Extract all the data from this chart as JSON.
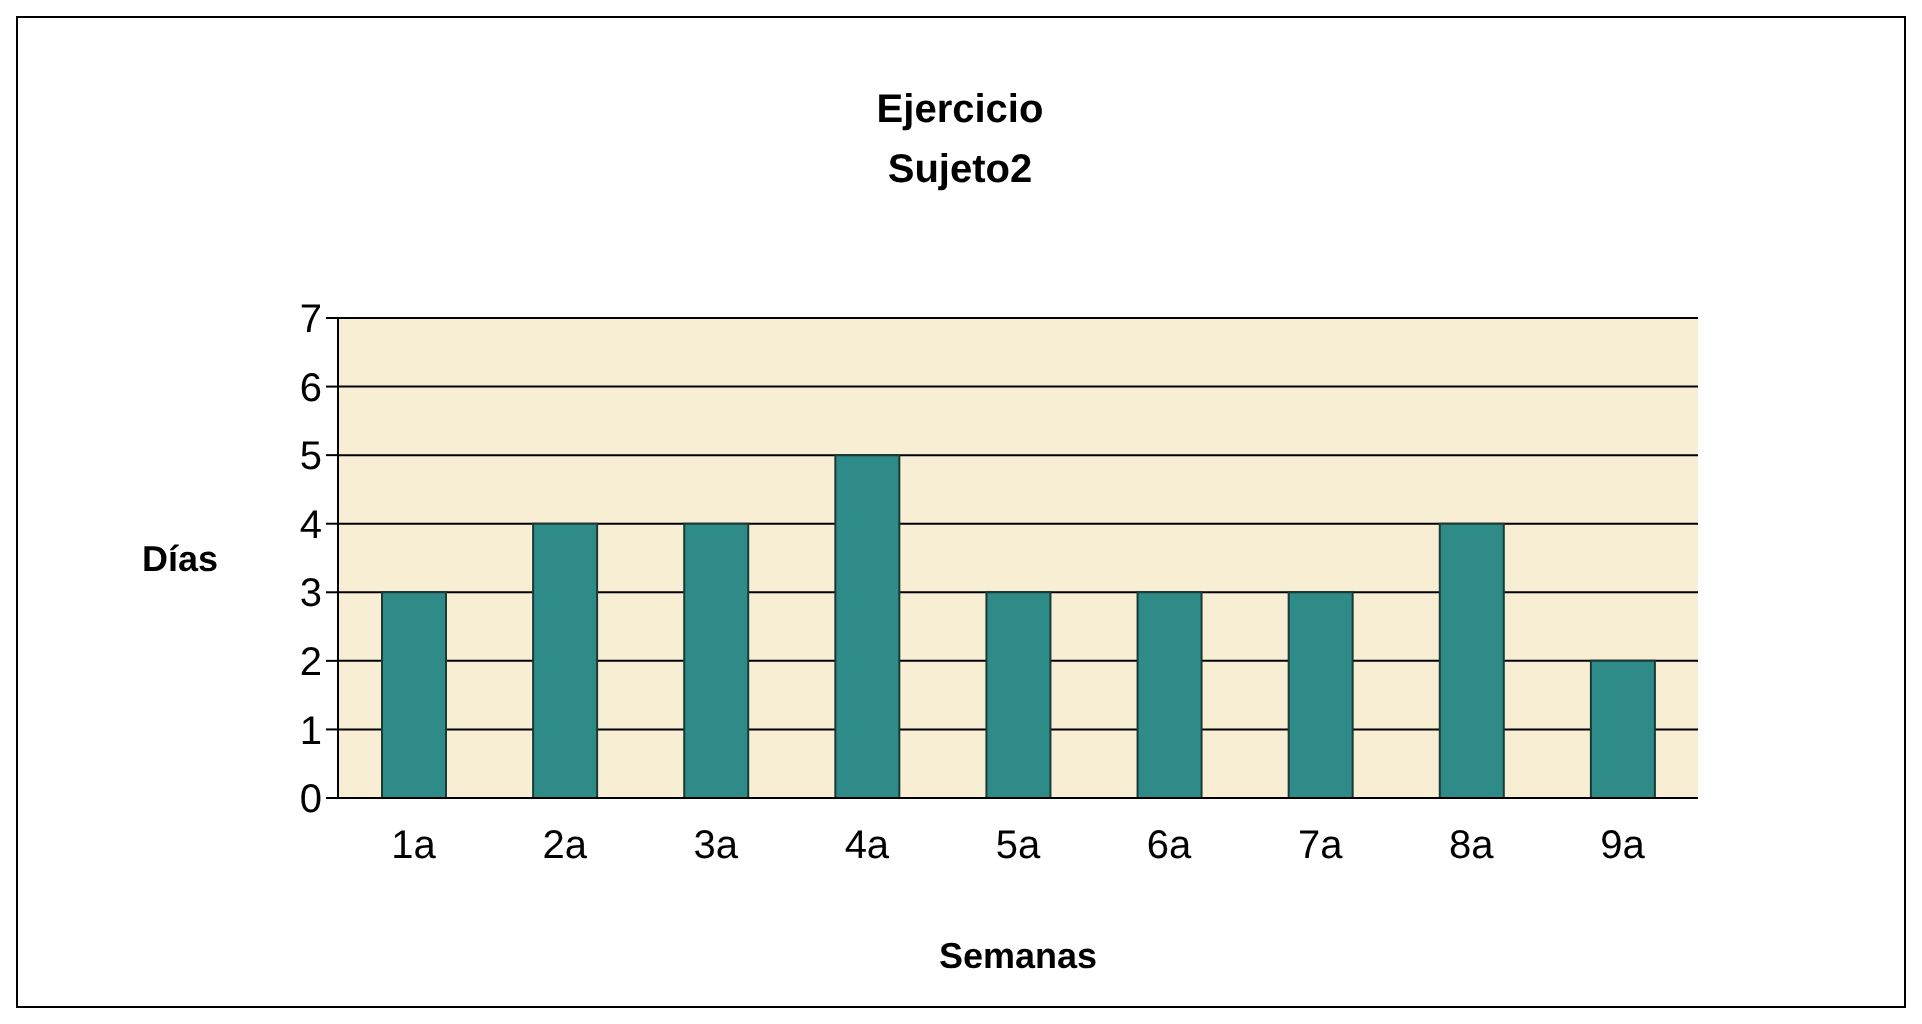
{
  "chart_data": {
    "type": "bar",
    "title": "Ejercicio\nSujeto2",
    "xlabel": "Semanas",
    "ylabel": "Días",
    "categories": [
      "1a",
      "2a",
      "3a",
      "4a",
      "5a",
      "6a",
      "7a",
      "8a",
      "9a"
    ],
    "values": [
      3,
      4,
      4,
      5,
      3,
      3,
      3,
      4,
      2
    ],
    "color": "#2e8b87",
    "ylim": [
      0,
      7
    ],
    "yticks": [
      0,
      1,
      2,
      3,
      4,
      5,
      6,
      7
    ],
    "grid": "y",
    "legend": false
  }
}
